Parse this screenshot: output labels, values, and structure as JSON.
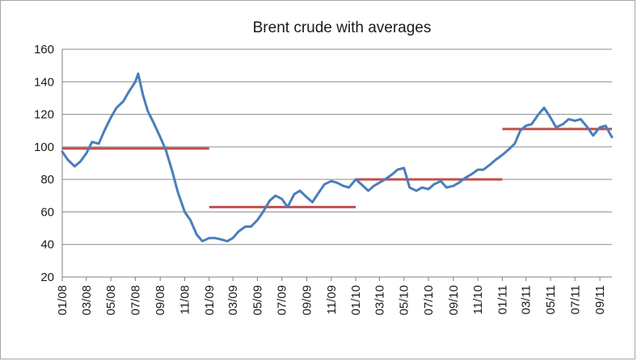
{
  "chart_data": {
    "type": "line",
    "title": "Brent crude with averages",
    "xlabel": "",
    "ylabel": "",
    "ylim": [
      20,
      160
    ],
    "yticks": [
      20,
      40,
      60,
      80,
      100,
      120,
      140,
      160
    ],
    "xlim": [
      "2008-01",
      "2011-10"
    ],
    "xticks": [
      "01/08",
      "03/08",
      "05/08",
      "07/08",
      "09/08",
      "11/08",
      "01/09",
      "03/09",
      "05/09",
      "07/09",
      "09/09",
      "11/09",
      "01/10",
      "03/10",
      "05/10",
      "07/10",
      "09/10",
      "11/10",
      "01/11",
      "03/11",
      "05/11",
      "07/11",
      "09/11"
    ],
    "grid": true,
    "legend": "none",
    "series": [
      {
        "color": "#4a7ebb",
        "points": [
          [
            "2008-01",
            97
          ],
          [
            "2008-01-15",
            92
          ],
          [
            "2008-02",
            88
          ],
          [
            "2008-02-15",
            91
          ],
          [
            "2008-03",
            96
          ],
          [
            "2008-03-15",
            103
          ],
          [
            "2008-04",
            102
          ],
          [
            "2008-04-15",
            110
          ],
          [
            "2008-05",
            118
          ],
          [
            "2008-05-15",
            124
          ],
          [
            "2008-06",
            128
          ],
          [
            "2008-06-15",
            134
          ],
          [
            "2008-07",
            140
          ],
          [
            "2008-07-08",
            145
          ],
          [
            "2008-07-20",
            132
          ],
          [
            "2008-08",
            122
          ],
          [
            "2008-08-15",
            115
          ],
          [
            "2008-09",
            106
          ],
          [
            "2008-09-15",
            98
          ],
          [
            "2008-10",
            85
          ],
          [
            "2008-10-15",
            72
          ],
          [
            "2008-11",
            60
          ],
          [
            "2008-11-15",
            55
          ],
          [
            "2008-12",
            46
          ],
          [
            "2008-12-15",
            42
          ],
          [
            "2009-01",
            44
          ],
          [
            "2009-01-15",
            44
          ],
          [
            "2009-02",
            43
          ],
          [
            "2009-02-15",
            42
          ],
          [
            "2009-03",
            44
          ],
          [
            "2009-03-15",
            48
          ],
          [
            "2009-04",
            51
          ],
          [
            "2009-04-15",
            51
          ],
          [
            "2009-05",
            55
          ],
          [
            "2009-05-15",
            60
          ],
          [
            "2009-06",
            67
          ],
          [
            "2009-06-15",
            70
          ],
          [
            "2009-07",
            68
          ],
          [
            "2009-07-15",
            63
          ],
          [
            "2009-08",
            71
          ],
          [
            "2009-08-15",
            73
          ],
          [
            "2009-09",
            69
          ],
          [
            "2009-09-15",
            66
          ],
          [
            "2009-10",
            72
          ],
          [
            "2009-10-15",
            77
          ],
          [
            "2009-11",
            79
          ],
          [
            "2009-11-15",
            78
          ],
          [
            "2009-12",
            76
          ],
          [
            "2009-12-15",
            75
          ],
          [
            "2010-01",
            80
          ],
          [
            "2010-01-15",
            77
          ],
          [
            "2010-02",
            73
          ],
          [
            "2010-02-15",
            76
          ],
          [
            "2010-03",
            78
          ],
          [
            "2010-03-15",
            80
          ],
          [
            "2010-04",
            83
          ],
          [
            "2010-04-15",
            86
          ],
          [
            "2010-05",
            87
          ],
          [
            "2010-05-15",
            75
          ],
          [
            "2010-06",
            73
          ],
          [
            "2010-06-15",
            75
          ],
          [
            "2010-07",
            74
          ],
          [
            "2010-07-15",
            77
          ],
          [
            "2010-08",
            79
          ],
          [
            "2010-08-15",
            75
          ],
          [
            "2010-09",
            76
          ],
          [
            "2010-09-15",
            78
          ],
          [
            "2010-10",
            81
          ],
          [
            "2010-10-15",
            83
          ],
          [
            "2010-11",
            86
          ],
          [
            "2010-11-15",
            86
          ],
          [
            "2010-12",
            89
          ],
          [
            "2010-12-15",
            92
          ],
          [
            "2011-01",
            95
          ],
          [
            "2011-01-15",
            98
          ],
          [
            "2011-02",
            102
          ],
          [
            "2011-02-15",
            110
          ],
          [
            "2011-03",
            113
          ],
          [
            "2011-03-15",
            114
          ],
          [
            "2011-04",
            120
          ],
          [
            "2011-04-15",
            124
          ],
          [
            "2011-05",
            118
          ],
          [
            "2011-05-15",
            112
          ],
          [
            "2011-06",
            114
          ],
          [
            "2011-06-15",
            117
          ],
          [
            "2011-07",
            116
          ],
          [
            "2011-07-15",
            117
          ],
          [
            "2011-08",
            112
          ],
          [
            "2011-08-15",
            107
          ],
          [
            "2011-09",
            112
          ],
          [
            "2011-09-15",
            113
          ],
          [
            "2011-10",
            106
          ]
        ]
      }
    ],
    "averages": [
      {
        "from": "2008-01",
        "to": "2009-01",
        "value": 99,
        "color": "#c0504d"
      },
      {
        "from": "2009-01",
        "to": "2010-01",
        "value": 63,
        "color": "#c0504d"
      },
      {
        "from": "2010-01",
        "to": "2011-01",
        "value": 80,
        "color": "#c0504d"
      },
      {
        "from": "2011-01",
        "to": "2011-10",
        "value": 111,
        "color": "#c0504d"
      }
    ]
  }
}
